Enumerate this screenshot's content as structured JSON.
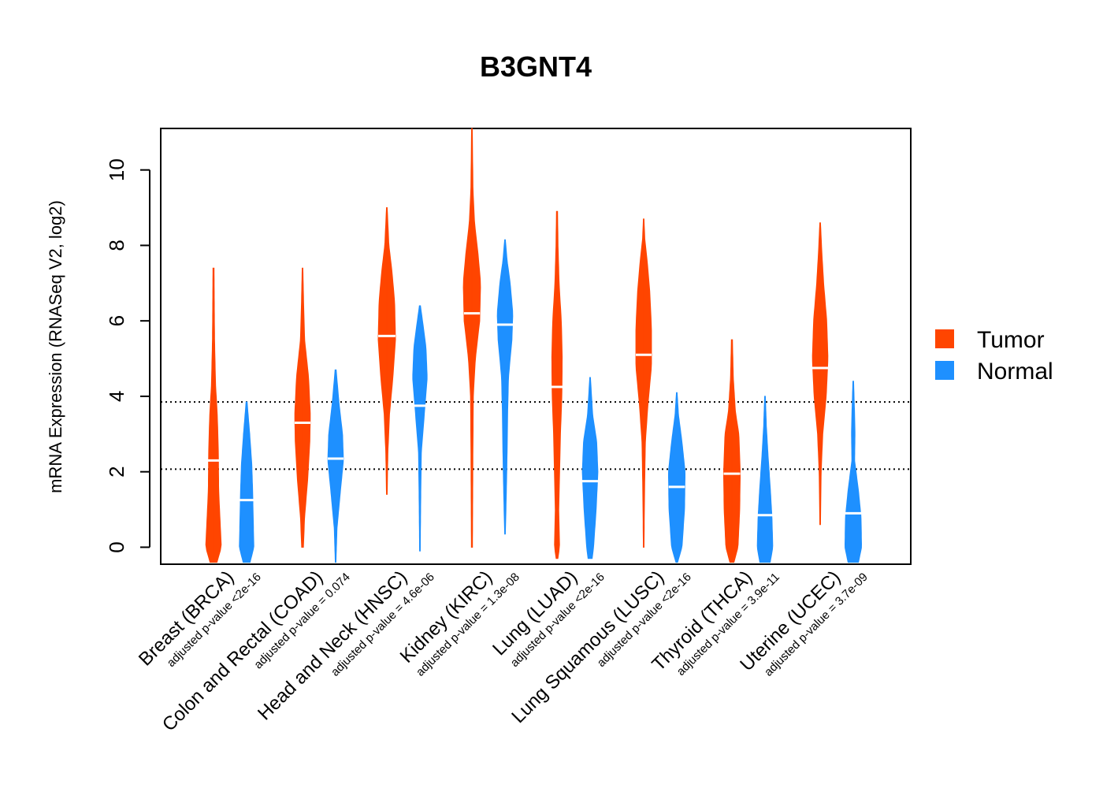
{
  "chart_data": {
    "type": "violin",
    "title": "B3GNT4",
    "xlabel": "",
    "ylabel": "mRNA Expression (RNASeq V2, log2)",
    "ylim": [
      -0.45,
      11.1
    ],
    "yticks": [
      0,
      2,
      4,
      6,
      8,
      10
    ],
    "reference_lines": [
      2.07,
      3.85
    ],
    "categories": [
      {
        "name": "Breast (BRCA)",
        "pvalue": "adjusted p-value <2e-16"
      },
      {
        "name": "Colon and Rectal (COAD)",
        "pvalue": "adjusted p-value = 0.074"
      },
      {
        "name": "Head and Neck (HNSC)",
        "pvalue": "adjusted p-value = 4.6e-06"
      },
      {
        "name": "Kidney (KIRC)",
        "pvalue": "adjusted p-value = 1.3e-08"
      },
      {
        "name": "Lung (LUAD)",
        "pvalue": "adjusted p-value <2e-16"
      },
      {
        "name": "Lung Squamous (LUSC)",
        "pvalue": "adjusted p-value <2e-16"
      },
      {
        "name": "Thyroid (THCA)",
        "pvalue": "adjusted p-value = 3.9e-11"
      },
      {
        "name": "Uterine (UCEC)",
        "pvalue": "adjusted p-value = 3.7e-09"
      }
    ],
    "series": [
      {
        "name": "Tumor",
        "color": "#FF4500",
        "groups": [
          {
            "median": 2.3,
            "min": -0.4,
            "max": 7.4,
            "shape": [
              [
                -0.4,
                0.2
              ],
              [
                0,
                0.45
              ],
              [
                0.5,
                0.4
              ],
              [
                1.5,
                0.3
              ],
              [
                2.5,
                0.28
              ],
              [
                3.5,
                0.22
              ],
              [
                4.3,
                0.12
              ],
              [
                5.5,
                0.06
              ],
              [
                7.4,
                0.03
              ]
            ]
          },
          {
            "median": 3.3,
            "min": 0.0,
            "max": 7.4,
            "shape": [
              [
                0,
                0.05
              ],
              [
                0.8,
                0.12
              ],
              [
                1.8,
                0.3
              ],
              [
                2.8,
                0.42
              ],
              [
                3.5,
                0.45
              ],
              [
                4.5,
                0.35
              ],
              [
                5.5,
                0.12
              ],
              [
                6.5,
                0.06
              ],
              [
                7.4,
                0.02
              ]
            ]
          },
          {
            "median": 5.6,
            "min": 1.4,
            "max": 9.0,
            "shape": [
              [
                1.4,
                0.02
              ],
              [
                2.5,
                0.06
              ],
              [
                3.5,
                0.15
              ],
              [
                4.5,
                0.35
              ],
              [
                5.5,
                0.5
              ],
              [
                6.5,
                0.45
              ],
              [
                7.3,
                0.3
              ],
              [
                8.0,
                0.12
              ],
              [
                9.0,
                0.02
              ]
            ]
          },
          {
            "median": 6.2,
            "min": 0.0,
            "max": 11.1,
            "shape": [
              [
                0,
                0.03
              ],
              [
                2,
                0.05
              ],
              [
                4,
                0.08
              ],
              [
                5,
                0.2
              ],
              [
                6,
                0.45
              ],
              [
                7,
                0.5
              ],
              [
                7.8,
                0.35
              ],
              [
                8.6,
                0.15
              ],
              [
                9.5,
                0.06
              ],
              [
                11.1,
                0.02
              ]
            ]
          },
          {
            "median": 4.25,
            "min": -0.3,
            "max": 8.9,
            "shape": [
              [
                -0.3,
                0.05
              ],
              [
                0,
                0.15
              ],
              [
                1,
                0.1
              ],
              [
                2,
                0.15
              ],
              [
                3,
                0.2
              ],
              [
                4,
                0.28
              ],
              [
                5,
                0.3
              ],
              [
                6,
                0.25
              ],
              [
                7,
                0.12
              ],
              [
                8,
                0.06
              ],
              [
                8.9,
                0.03
              ]
            ]
          },
          {
            "median": 5.1,
            "min": 0.0,
            "max": 8.7,
            "shape": [
              [
                0,
                0.02
              ],
              [
                1.5,
                0.05
              ],
              [
                2.8,
                0.1
              ],
              [
                3.8,
                0.25
              ],
              [
                4.8,
                0.45
              ],
              [
                5.8,
                0.45
              ],
              [
                6.8,
                0.35
              ],
              [
                7.6,
                0.2
              ],
              [
                8.2,
                0.06
              ],
              [
                8.7,
                0.02
              ]
            ]
          },
          {
            "median": 1.95,
            "min": -0.4,
            "max": 5.5,
            "shape": [
              [
                -0.4,
                0.12
              ],
              [
                0,
                0.35
              ],
              [
                1,
                0.45
              ],
              [
                2,
                0.48
              ],
              [
                3,
                0.4
              ],
              [
                3.6,
                0.2
              ],
              [
                4.5,
                0.08
              ],
              [
                5.5,
                0.03
              ]
            ]
          },
          {
            "median": 4.75,
            "min": 0.6,
            "max": 8.6,
            "shape": [
              [
                0.6,
                0.02
              ],
              [
                2,
                0.06
              ],
              [
                3,
                0.15
              ],
              [
                4,
                0.35
              ],
              [
                5,
                0.45
              ],
              [
                6,
                0.38
              ],
              [
                7,
                0.2
              ],
              [
                7.8,
                0.1
              ],
              [
                8.6,
                0.02
              ]
            ]
          }
        ]
      },
      {
        "name": "Normal",
        "color": "#1E90FF",
        "groups": [
          {
            "median": 1.25,
            "min": -0.4,
            "max": 3.85,
            "shape": [
              [
                -0.4,
                0.2
              ],
              [
                0,
                0.42
              ],
              [
                0.8,
                0.38
              ],
              [
                1.5,
                0.35
              ],
              [
                2.2,
                0.3
              ],
              [
                3,
                0.18
              ],
              [
                3.85,
                0.03
              ]
            ]
          },
          {
            "median": 2.35,
            "min": -0.4,
            "max": 4.7,
            "shape": [
              [
                -0.4,
                0.02
              ],
              [
                0.5,
                0.08
              ],
              [
                1.5,
                0.28
              ],
              [
                2.3,
                0.45
              ],
              [
                3,
                0.4
              ],
              [
                3.8,
                0.2
              ],
              [
                4.7,
                0.03
              ]
            ]
          },
          {
            "median": 3.75,
            "min": -0.1,
            "max": 6.4,
            "shape": [
              [
                -0.1,
                0.02
              ],
              [
                1,
                0.04
              ],
              [
                2.5,
                0.08
              ],
              [
                3.5,
                0.25
              ],
              [
                4.5,
                0.42
              ],
              [
                5.3,
                0.35
              ],
              [
                6,
                0.15
              ],
              [
                6.4,
                0.03
              ]
            ]
          },
          {
            "median": 5.9,
            "min": 0.35,
            "max": 8.15,
            "shape": [
              [
                0.35,
                0.02
              ],
              [
                1.5,
                0.08
              ],
              [
                2.5,
                0.12
              ],
              [
                3.5,
                0.15
              ],
              [
                4.5,
                0.2
              ],
              [
                5.5,
                0.4
              ],
              [
                6.2,
                0.45
              ],
              [
                7,
                0.3
              ],
              [
                7.6,
                0.12
              ],
              [
                8.15,
                0.02
              ]
            ]
          },
          {
            "median": 1.75,
            "min": -0.3,
            "max": 4.5,
            "shape": [
              [
                -0.3,
                0.12
              ],
              [
                0,
                0.2
              ],
              [
                1,
                0.35
              ],
              [
                2,
                0.45
              ],
              [
                2.8,
                0.38
              ],
              [
                3.5,
                0.15
              ],
              [
                4.5,
                0.02
              ]
            ]
          },
          {
            "median": 1.6,
            "min": -0.4,
            "max": 4.1,
            "shape": [
              [
                -0.4,
                0.05
              ],
              [
                0,
                0.3
              ],
              [
                1,
                0.45
              ],
              [
                2,
                0.48
              ],
              [
                2.8,
                0.3
              ],
              [
                3.5,
                0.1
              ],
              [
                4.1,
                0.02
              ]
            ]
          },
          {
            "median": 0.85,
            "min": -0.4,
            "max": 4.0,
            "shape": [
              [
                -0.4,
                0.3
              ],
              [
                0,
                0.45
              ],
              [
                0.8,
                0.4
              ],
              [
                1.6,
                0.3
              ],
              [
                2.4,
                0.18
              ],
              [
                3.2,
                0.08
              ],
              [
                4.0,
                0.02
              ]
            ]
          },
          {
            "median": 0.9,
            "min": -0.4,
            "max": 4.4,
            "shape": [
              [
                -0.4,
                0.3
              ],
              [
                0,
                0.48
              ],
              [
                0.8,
                0.45
              ],
              [
                1.5,
                0.3
              ],
              [
                2.3,
                0.08
              ],
              [
                3,
                0.1
              ],
              [
                3.5,
                0.08
              ],
              [
                4.4,
                0.02
              ]
            ]
          }
        ]
      }
    ],
    "legend": {
      "position": "right",
      "entries": [
        {
          "label": "Tumor",
          "color": "#FF4500"
        },
        {
          "label": "Normal",
          "color": "#1E90FF"
        }
      ]
    }
  }
}
